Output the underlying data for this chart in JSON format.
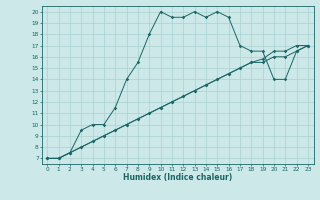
{
  "xlabel": "Humidex (Indice chaleur)",
  "bg_color": "#cce8e8",
  "grid_color": "#aad0d0",
  "line_color": "#1a6666",
  "xlim": [
    -0.5,
    23.5
  ],
  "ylim": [
    6.5,
    20.5
  ],
  "xticks": [
    0,
    1,
    2,
    3,
    4,
    5,
    6,
    7,
    8,
    9,
    10,
    11,
    12,
    13,
    14,
    15,
    16,
    17,
    18,
    19,
    20,
    21,
    22,
    23
  ],
  "yticks": [
    7,
    8,
    9,
    10,
    11,
    12,
    13,
    14,
    15,
    16,
    17,
    18,
    19,
    20
  ],
  "line1_x": [
    0,
    1,
    2,
    3,
    4,
    5,
    6,
    7,
    8,
    9,
    10,
    11,
    12,
    13,
    14,
    15,
    16,
    17,
    18,
    19,
    20,
    21,
    22,
    23
  ],
  "line1_y": [
    7,
    7,
    7.5,
    9.5,
    10,
    10,
    11.5,
    14,
    15.5,
    18,
    20,
    19.5,
    19.5,
    20,
    19.5,
    20,
    19.5,
    17,
    16.5,
    16.5,
    14,
    14,
    16.5,
    17
  ],
  "line2_x": [
    0,
    1,
    2,
    3,
    4,
    5,
    6,
    7,
    8,
    9,
    10,
    11,
    12,
    13,
    14,
    15,
    16,
    17,
    18,
    19,
    20,
    21,
    22,
    23
  ],
  "line2_y": [
    7,
    7,
    7.5,
    8,
    8.5,
    9,
    9.5,
    10,
    10.5,
    11,
    11.5,
    12,
    12.5,
    13,
    13.5,
    14,
    14.5,
    15,
    15.5,
    15.5,
    16,
    16,
    16.5,
    17
  ],
  "line3_x": [
    0,
    1,
    2,
    3,
    4,
    5,
    6,
    7,
    8,
    9,
    10,
    11,
    12,
    13,
    14,
    15,
    16,
    17,
    18,
    19,
    20,
    21,
    22,
    23
  ],
  "line3_y": [
    7,
    7,
    7.5,
    8,
    8.5,
    9,
    9.5,
    10,
    10.5,
    11,
    11.5,
    12,
    12.5,
    13,
    13.5,
    14,
    14.5,
    15,
    15.5,
    15.8,
    16.5,
    16.5,
    17,
    17
  ]
}
